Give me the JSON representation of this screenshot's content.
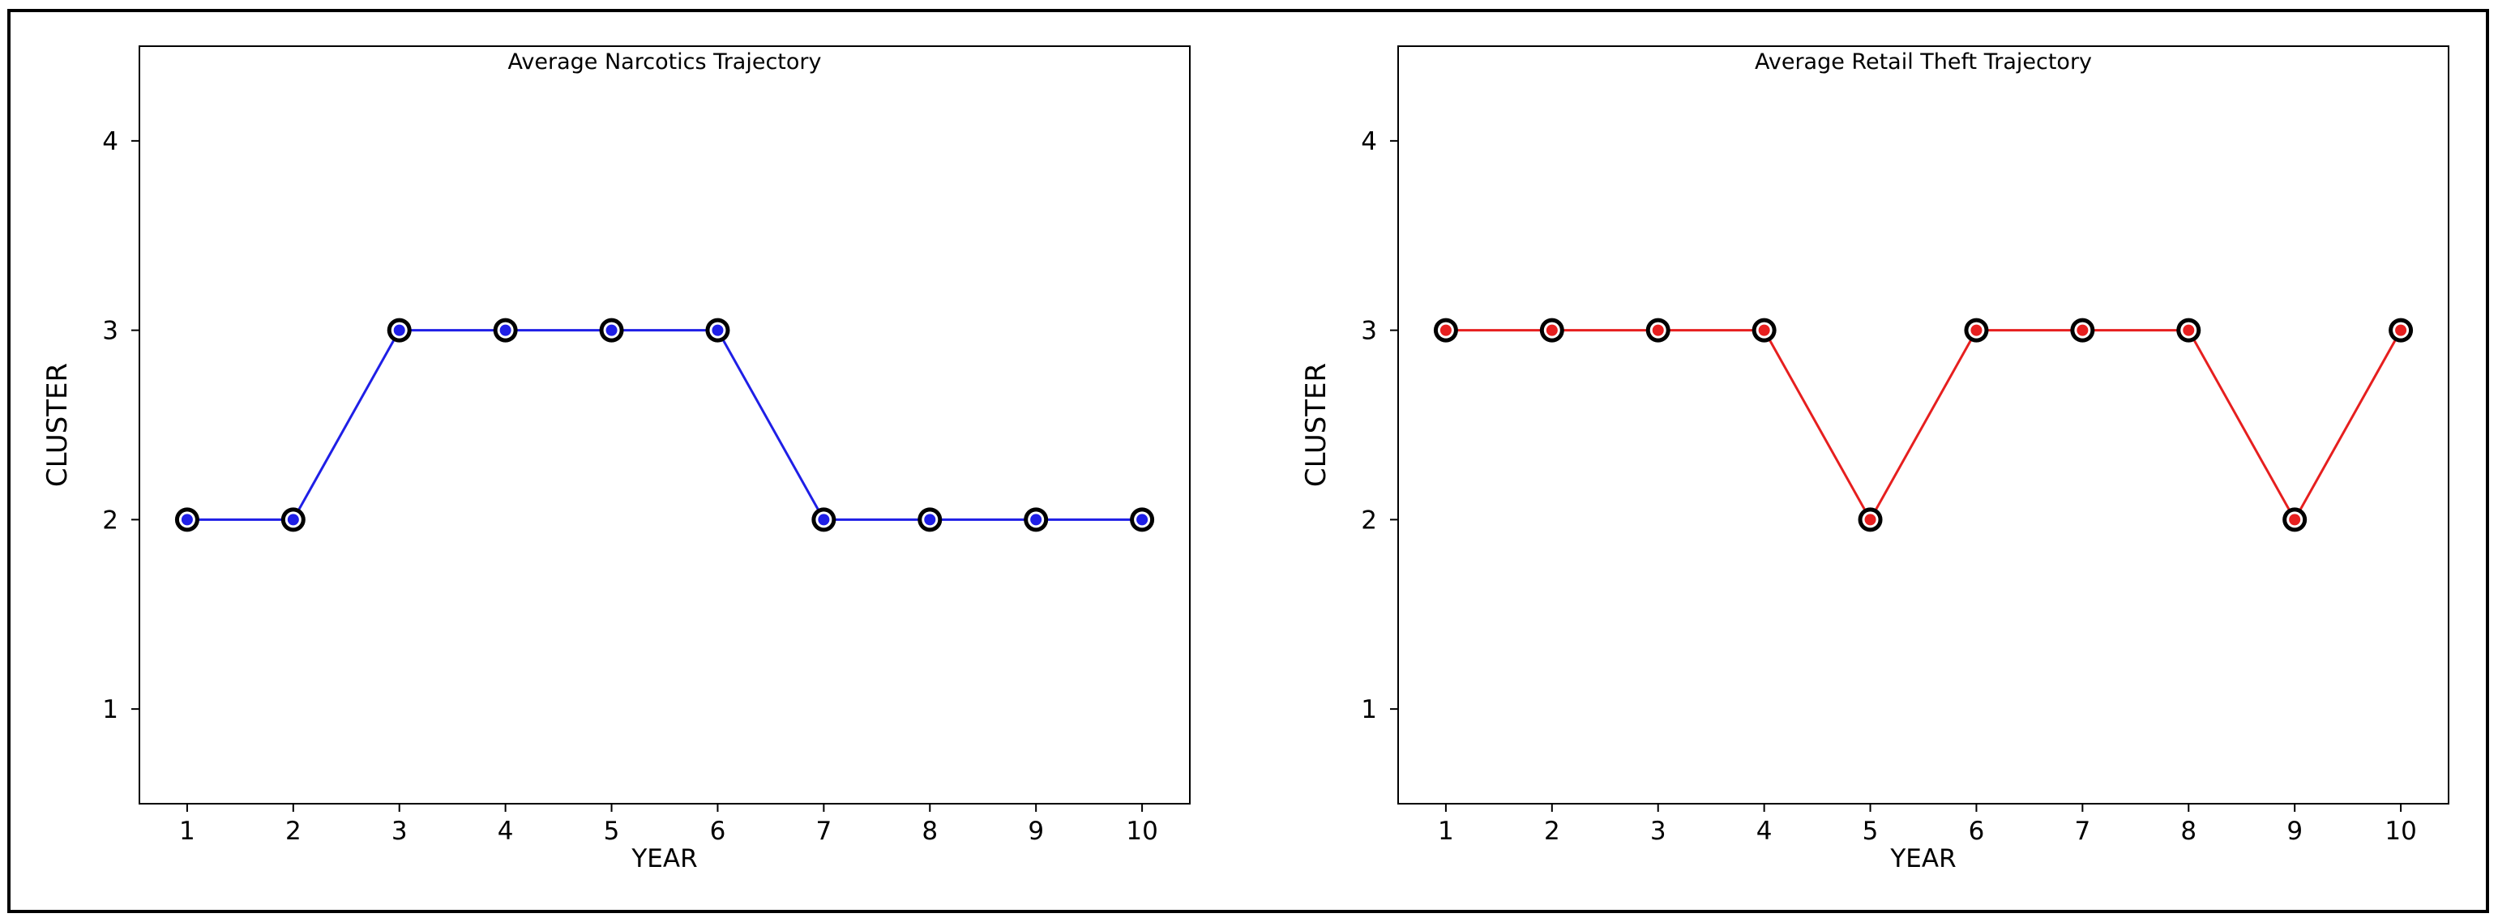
{
  "chart_data": [
    {
      "type": "line",
      "title": "Average Narcotics Trajectory",
      "xlabel": "YEAR",
      "ylabel": "CLUSTER",
      "x": [
        1,
        2,
        3,
        4,
        5,
        6,
        7,
        8,
        9,
        10
      ],
      "xticks": [
        1,
        2,
        3,
        4,
        5,
        6,
        7,
        8,
        9,
        10
      ],
      "yticks": [
        1,
        2,
        3,
        4
      ],
      "xlim": [
        0.55,
        10.45
      ],
      "ylim": [
        0.5,
        4.5
      ],
      "grid": false,
      "series": [
        {
          "values": [
            2,
            2,
            3,
            3,
            3,
            3,
            2,
            2,
            2,
            2
          ],
          "line_color": "#1f1fe6",
          "marker_fill": "#1f1fe6",
          "marker_edge": "#000000"
        }
      ]
    },
    {
      "type": "line",
      "title": "Average Retail Theft Trajectory",
      "xlabel": "YEAR",
      "ylabel": "CLUSTER",
      "x": [
        1,
        2,
        3,
        4,
        5,
        6,
        7,
        8,
        9,
        10
      ],
      "xticks": [
        1,
        2,
        3,
        4,
        5,
        6,
        7,
        8,
        9,
        10
      ],
      "yticks": [
        1,
        2,
        3,
        4
      ],
      "xlim": [
        0.55,
        10.45
      ],
      "ylim": [
        0.5,
        4.5
      ],
      "grid": false,
      "series": [
        {
          "values": [
            3,
            3,
            3,
            3,
            2,
            3,
            3,
            3,
            2,
            3
          ],
          "line_color": "#e61f1f",
          "marker_fill": "#e61f1f",
          "marker_edge": "#000000"
        }
      ]
    }
  ]
}
